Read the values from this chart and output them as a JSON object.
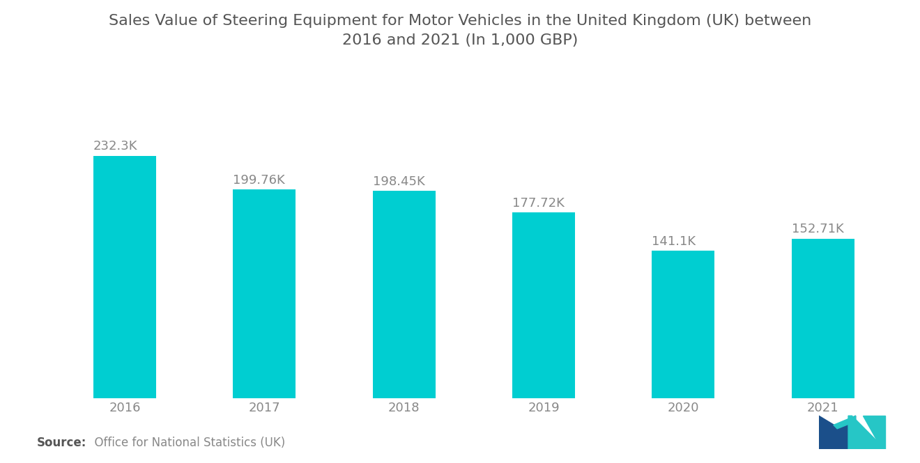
{
  "title_line1": "Sales Value of Steering Equipment for Motor Vehicles in the United Kingdom (UK) between",
  "title_line2": "2016 and 2021 (In 1,000 GBP)",
  "categories": [
    "2016",
    "2017",
    "2018",
    "2019",
    "2020",
    "2021"
  ],
  "values": [
    232.3,
    199.76,
    198.45,
    177.72,
    141.1,
    152.71
  ],
  "labels": [
    "232.3K",
    "199.76K",
    "198.45K",
    "177.72K",
    "141.1K",
    "152.71K"
  ],
  "bar_color": "#00CED1",
  "background_color": "#ffffff",
  "source_bold": "Source:",
  "source_rest": "  Office for National Statistics (UK)",
  "title_fontsize": 16,
  "label_fontsize": 13,
  "tick_fontsize": 13,
  "source_fontsize": 12,
  "bar_width": 0.45,
  "ylim": [
    0,
    275
  ]
}
